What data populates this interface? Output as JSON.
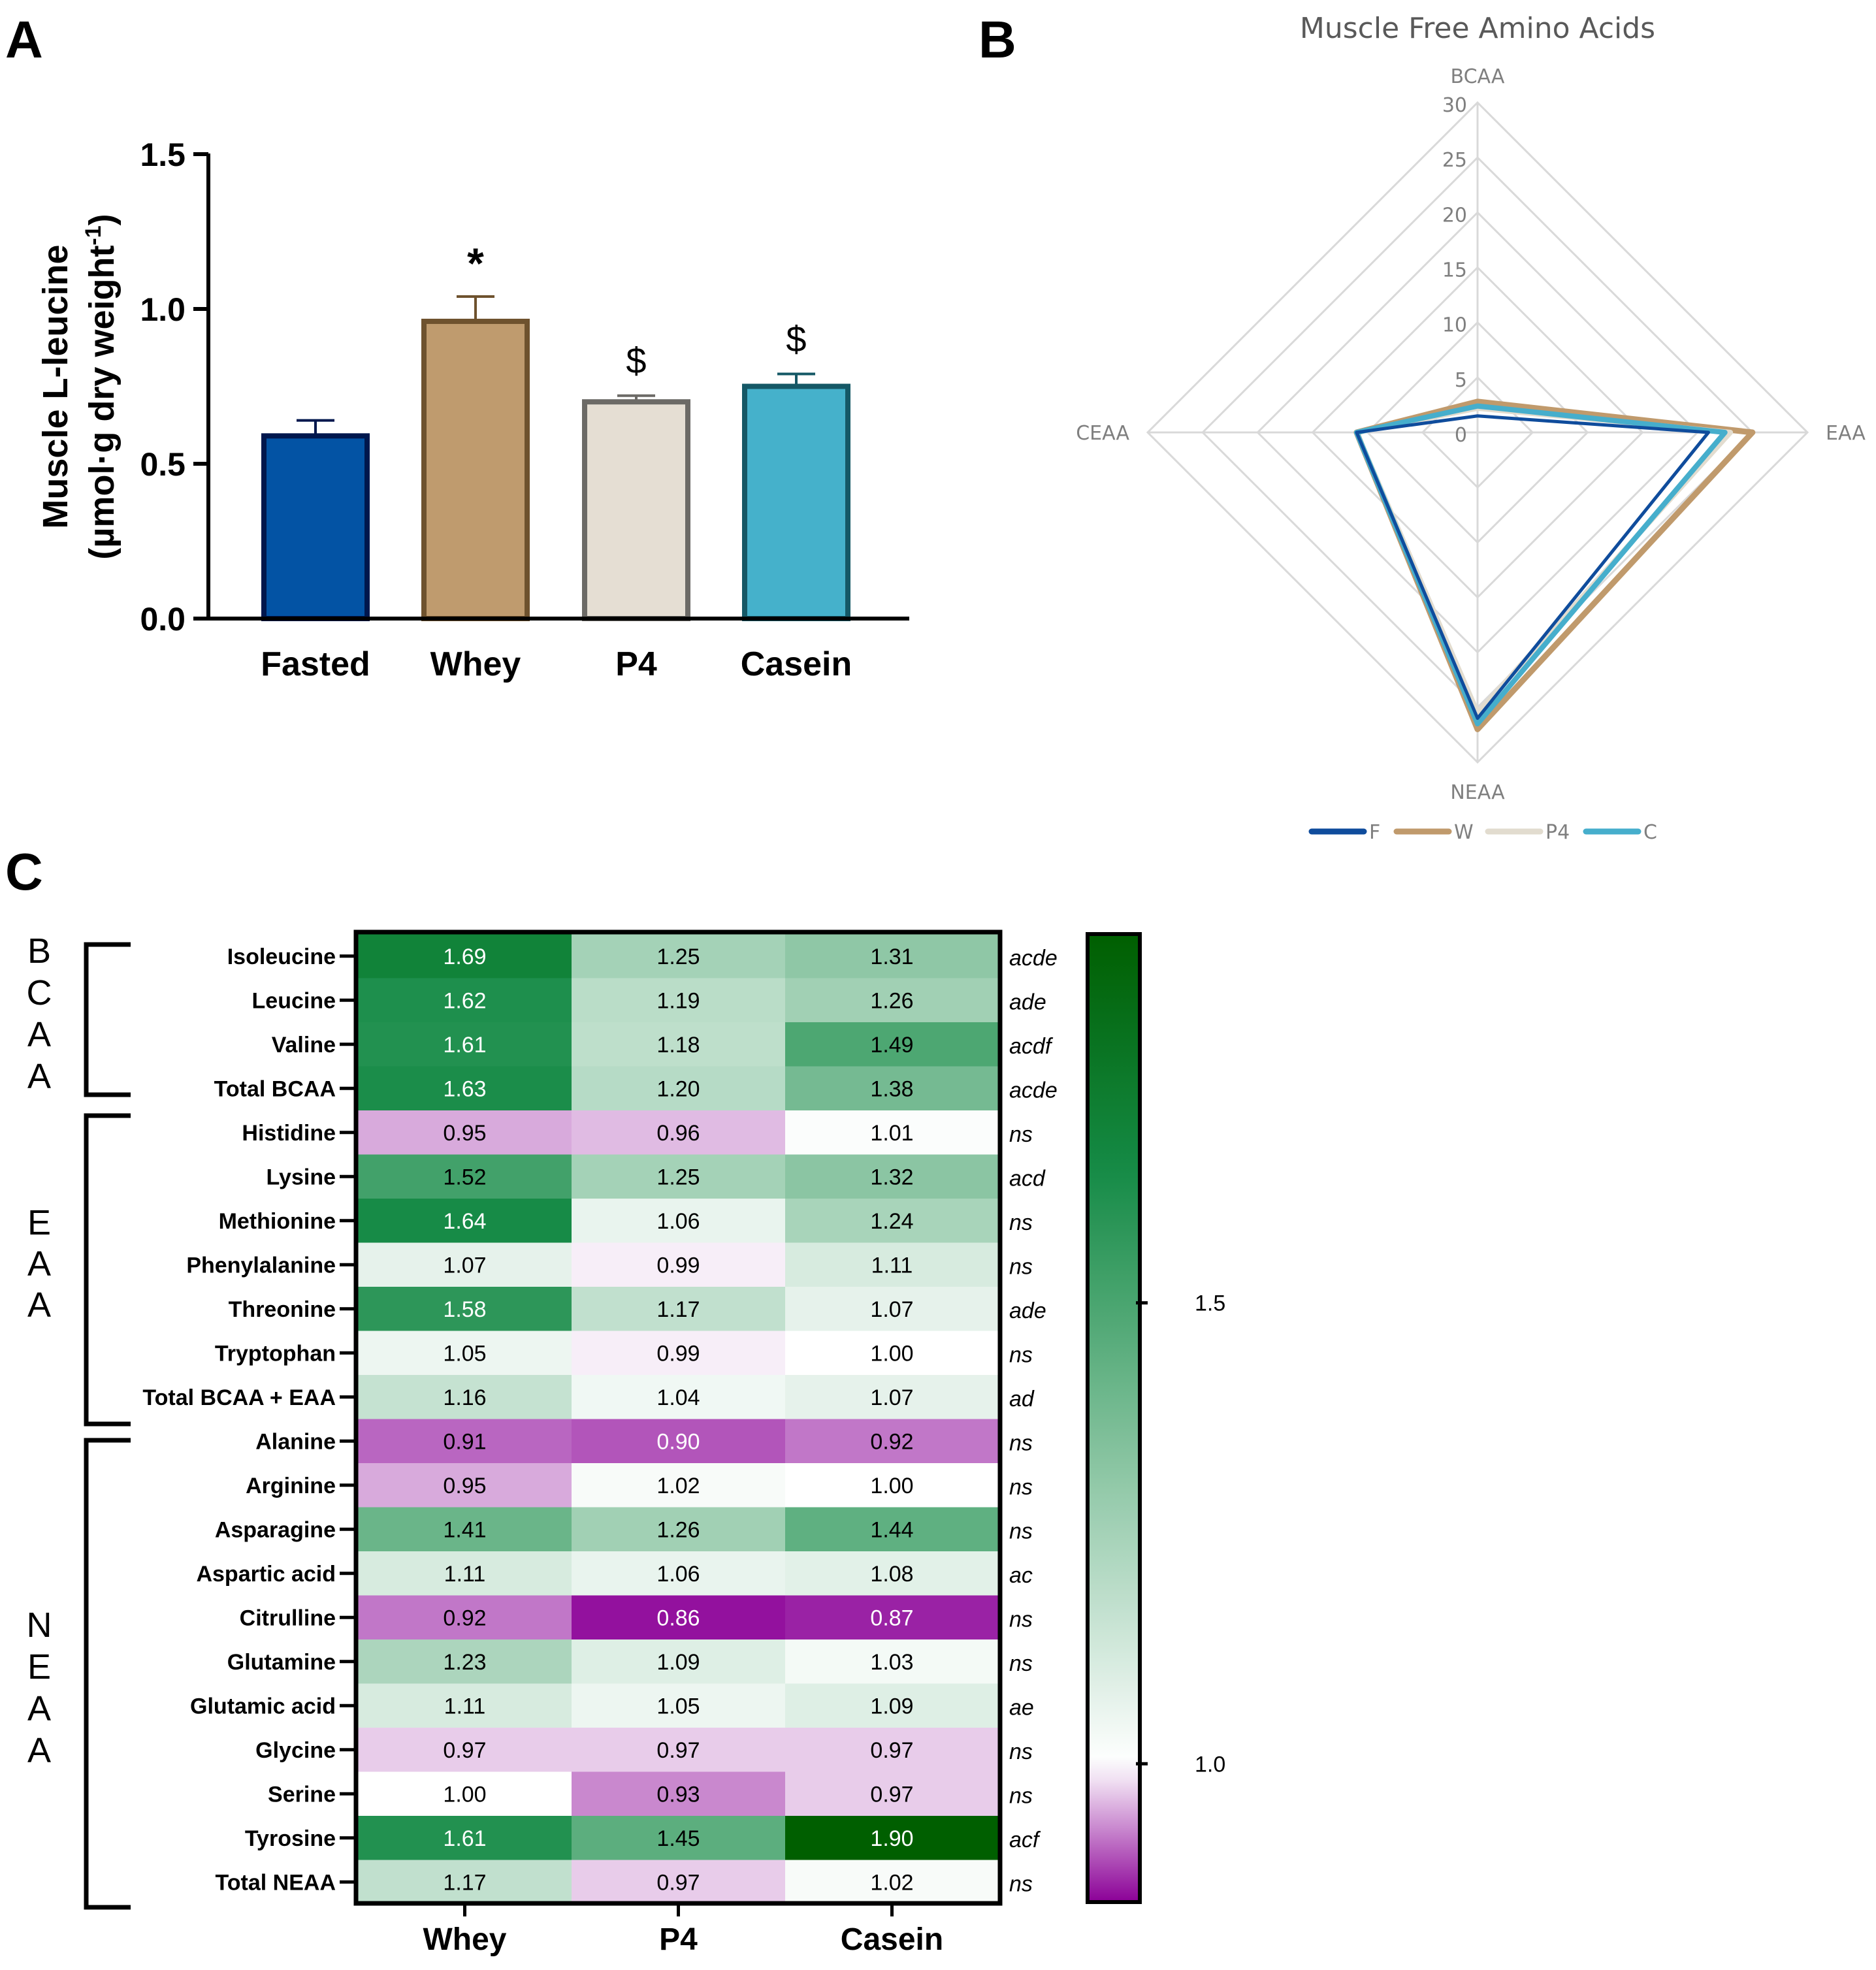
{
  "panel_labels": {
    "a": "A",
    "b": "B",
    "c": "C"
  },
  "chart_data": [
    {
      "panel": "A",
      "type": "bar",
      "title": "",
      "ylabel_line1": "Muscle L-leucine",
      "ylabel_line2_prefix": "(µmol·g dry weight",
      "ylabel_sup": "-1",
      "ylabel_line2_suffix": ")",
      "ylim": [
        0,
        1.5
      ],
      "yticks": [
        {
          "value": 0.0,
          "label": "0.0"
        },
        {
          "value": 0.5,
          "label": "0.5"
        },
        {
          "value": 1.0,
          "label": "1.0"
        },
        {
          "value": 1.5,
          "label": "1.5"
        }
      ],
      "categories": [
        "Fasted",
        "Whey",
        "P4",
        "Casein"
      ],
      "values": [
        0.59,
        0.96,
        0.7,
        0.75
      ],
      "errors": [
        0.05,
        0.08,
        0.02,
        0.04
      ],
      "annotations": [
        "",
        "*",
        "$",
        "$"
      ],
      "fills": [
        "#0353A4",
        "#BF9B6E",
        "#E5DED3",
        "#45B1CB"
      ],
      "strokes": [
        "#00174D",
        "#6E522E",
        "#6C6A66",
        "#155866"
      ]
    },
    {
      "panel": "B",
      "type": "radar",
      "title": "Muscle Free Amino Acids",
      "axes": [
        "BCAA",
        "EAA",
        "NEAA",
        "CEAA"
      ],
      "rticks": [
        0,
        5,
        10,
        15,
        20,
        25,
        30
      ],
      "rlim": [
        0,
        30
      ],
      "series": [
        {
          "name": "F",
          "color": "#0F4C9C",
          "values": [
            1.5,
            21.0,
            26.0,
            11.0
          ]
        },
        {
          "name": "W",
          "color": "#C09A6C",
          "values": [
            2.8,
            25.0,
            27.0,
            11.0
          ]
        },
        {
          "name": "P4",
          "color": "#E2DCCF",
          "values": [
            2.2,
            23.0,
            25.5,
            11.0
          ]
        },
        {
          "name": "C",
          "color": "#46AECC",
          "values": [
            2.4,
            22.5,
            26.5,
            11.0
          ]
        }
      ]
    },
    {
      "panel": "C",
      "type": "heatmap",
      "columns": [
        "Whey",
        "P4",
        "Casein"
      ],
      "groups": [
        {
          "letters": [
            "B",
            "C",
            "A",
            "A"
          ]
        },
        {
          "letters": [
            "E",
            "A",
            "A"
          ]
        },
        {
          "letters": [
            "N",
            "E",
            "A",
            "A"
          ]
        }
      ],
      "rows": [
        {
          "label": "Isoleucine",
          "values": [
            1.69,
            1.25,
            1.31
          ],
          "texts": [
            "1.69",
            "1.25",
            "1.31"
          ],
          "sig": "acde"
        },
        {
          "label": "Leucine",
          "values": [
            1.62,
            1.19,
            1.26
          ],
          "texts": [
            "1.62",
            "1.19",
            "1.26"
          ],
          "sig": "ade"
        },
        {
          "label": "Valine",
          "values": [
            1.61,
            1.18,
            1.49
          ],
          "texts": [
            "1.61",
            "1.18",
            "1.49"
          ],
          "sig": "acdf"
        },
        {
          "label": "Total BCAA",
          "values": [
            1.63,
            1.2,
            1.38
          ],
          "texts": [
            "1.63",
            "1.20",
            "1.38"
          ],
          "sig": "acde"
        },
        {
          "label": "Histidine",
          "values": [
            0.95,
            0.96,
            1.01
          ],
          "texts": [
            "0.95",
            "0.96",
            "1.01"
          ],
          "sig": "ns"
        },
        {
          "label": "Lysine",
          "values": [
            1.52,
            1.25,
            1.32
          ],
          "texts": [
            "1.52",
            "1.25",
            "1.32"
          ],
          "sig": "acd"
        },
        {
          "label": "Methionine",
          "values": [
            1.64,
            1.06,
            1.24
          ],
          "texts": [
            "1.64",
            "1.06",
            "1.24"
          ],
          "sig": "ns"
        },
        {
          "label": "Phenylalanine",
          "values": [
            1.07,
            0.99,
            1.11
          ],
          "texts": [
            "1.07",
            "0.99",
            "1.11"
          ],
          "sig": "ns"
        },
        {
          "label": "Threonine",
          "values": [
            1.58,
            1.17,
            1.07
          ],
          "texts": [
            "1.58",
            "1.17",
            "1.07"
          ],
          "sig": "ade"
        },
        {
          "label": "Tryptophan",
          "values": [
            1.05,
            0.99,
            1.0
          ],
          "texts": [
            "1.05",
            "0.99",
            "1.00"
          ],
          "sig": "ns"
        },
        {
          "label": "Total BCAA + EAA",
          "values": [
            1.16,
            1.04,
            1.07
          ],
          "texts": [
            "1.16",
            "1.04",
            "1.07"
          ],
          "sig": "ad"
        },
        {
          "label": "Alanine",
          "values": [
            0.91,
            0.9,
            0.92
          ],
          "texts": [
            "0.91",
            "0.90",
            "0.92"
          ],
          "sig": "ns"
        },
        {
          "label": "Arginine",
          "values": [
            0.95,
            1.02,
            1.0
          ],
          "texts": [
            "0.95",
            "1.02",
            "1.00"
          ],
          "sig": "ns"
        },
        {
          "label": "Asparagine",
          "values": [
            1.41,
            1.26,
            1.44
          ],
          "texts": [
            "1.41",
            "1.26",
            "1.44"
          ],
          "sig": "ns"
        },
        {
          "label": "Aspartic acid",
          "values": [
            1.11,
            1.06,
            1.08
          ],
          "texts": [
            "1.11",
            "1.06",
            "1.08"
          ],
          "sig": "ac"
        },
        {
          "label": "Citrulline",
          "values": [
            0.92,
            0.86,
            0.87
          ],
          "texts": [
            "0.92",
            "0.86",
            "0.87"
          ],
          "sig": "ns"
        },
        {
          "label": "Glutamine",
          "values": [
            1.23,
            1.09,
            1.03
          ],
          "texts": [
            "1.23",
            "1.09",
            "1.03"
          ],
          "sig": "ns"
        },
        {
          "label": "Glutamic acid",
          "values": [
            1.11,
            1.05,
            1.09
          ],
          "texts": [
            "1.11",
            "1.05",
            "1.09"
          ],
          "sig": "ae"
        },
        {
          "label": "Glycine",
          "values": [
            0.97,
            0.97,
            0.97
          ],
          "texts": [
            "0.97",
            "0.97",
            "0.97"
          ],
          "sig": "ns"
        },
        {
          "label": "Serine",
          "values": [
            1.0,
            0.93,
            0.97
          ],
          "texts": [
            "1.00",
            "0.93",
            "0.97"
          ],
          "sig": "ns"
        },
        {
          "label": "Tyrosine",
          "values": [
            1.61,
            1.45,
            1.9
          ],
          "texts": [
            "1.61",
            "1.45",
            "1.90"
          ],
          "sig": "acf"
        },
        {
          "label": "Total NEAA",
          "values": [
            1.17,
            0.97,
            1.02
          ],
          "texts": [
            "1.17",
            "0.97",
            "1.02"
          ],
          "sig": "ns"
        }
      ],
      "colorbar": {
        "range": [
          0.85,
          1.9
        ],
        "ticks": [
          {
            "value": 1.5,
            "label": "1.5"
          },
          {
            "value": 1.0,
            "label": "1.0"
          }
        ],
        "colors": {
          "low": "#8B0097",
          "mid": "#FFFFFF",
          "high": "#005F00"
        }
      }
    }
  ]
}
